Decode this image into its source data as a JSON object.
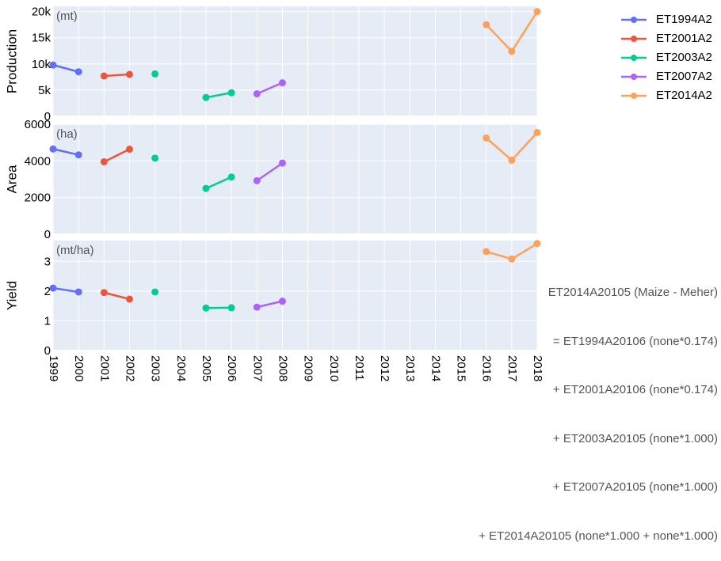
{
  "chart_data": {
    "type": "line",
    "x_range": [
      1999,
      2018
    ],
    "x_ticks": [
      "1999",
      "2000",
      "2001",
      "2002",
      "2003",
      "2004",
      "2005",
      "2006",
      "2007",
      "2008",
      "2009",
      "2010",
      "2011",
      "2012",
      "2013",
      "2014",
      "2015",
      "2016",
      "2017",
      "2018"
    ],
    "panels": [
      {
        "ylabel": "Production",
        "unit": "(mt)",
        "ylim": [
          0,
          21000
        ],
        "yticks": [
          {
            "v": 0,
            "label": "0"
          },
          {
            "v": 5000,
            "label": "5k"
          },
          {
            "v": 10000,
            "label": "10k"
          },
          {
            "v": 15000,
            "label": "15k"
          },
          {
            "v": 20000,
            "label": "20k"
          }
        ],
        "series": [
          {
            "name": "ET1994A2",
            "x": [
              1999,
              2000
            ],
            "y": [
              9800,
              8500
            ]
          },
          {
            "name": "ET2001A2",
            "x": [
              2001,
              2002
            ],
            "y": [
              7700,
              8000
            ]
          },
          {
            "name": "ET2003A2",
            "x": [
              2003
            ],
            "y": [
              8100
            ]
          },
          {
            "name": "ET2003A2",
            "x": [
              2005,
              2006
            ],
            "y": [
              3600,
              4500
            ]
          },
          {
            "name": "ET2007A2",
            "x": [
              2007,
              2008
            ],
            "y": [
              4300,
              6400
            ]
          },
          {
            "name": "ET2014A2",
            "x": [
              2016,
              2017,
              2018
            ],
            "y": [
              17500,
              12400,
              20000
            ]
          }
        ]
      },
      {
        "ylabel": "Area",
        "unit": "(ha)",
        "ylim": [
          0,
          6000
        ],
        "yticks": [
          {
            "v": 0,
            "label": "0"
          },
          {
            "v": 2000,
            "label": "2000"
          },
          {
            "v": 4000,
            "label": "4000"
          },
          {
            "v": 6000,
            "label": "6000"
          }
        ],
        "series": [
          {
            "name": "ET1994A2",
            "x": [
              1999,
              2000
            ],
            "y": [
              4650,
              4330
            ]
          },
          {
            "name": "ET2001A2",
            "x": [
              2001,
              2002
            ],
            "y": [
              3950,
              4640
            ]
          },
          {
            "name": "ET2003A2",
            "x": [
              2003
            ],
            "y": [
              4150
            ]
          },
          {
            "name": "ET2003A2",
            "x": [
              2005,
              2006
            ],
            "y": [
              2500,
              3120
            ]
          },
          {
            "name": "ET2007A2",
            "x": [
              2007,
              2008
            ],
            "y": [
              2920,
              3880
            ]
          },
          {
            "name": "ET2014A2",
            "x": [
              2016,
              2017,
              2018
            ],
            "y": [
              5250,
              4040,
              5550
            ]
          }
        ]
      },
      {
        "ylabel": "Yield",
        "unit": "(mt/ha)",
        "ylim": [
          0,
          3.7
        ],
        "yticks": [
          {
            "v": 0,
            "label": "0"
          },
          {
            "v": 1,
            "label": "1"
          },
          {
            "v": 2,
            "label": "2"
          },
          {
            "v": 3,
            "label": "3"
          }
        ],
        "series": [
          {
            "name": "ET1994A2",
            "x": [
              1999,
              2000
            ],
            "y": [
              2.1,
              1.97
            ]
          },
          {
            "name": "ET2001A2",
            "x": [
              2001,
              2002
            ],
            "y": [
              1.95,
              1.73
            ]
          },
          {
            "name": "ET2003A2",
            "x": [
              2003
            ],
            "y": [
              1.97
            ]
          },
          {
            "name": "ET2003A2",
            "x": [
              2005,
              2006
            ],
            "y": [
              1.43,
              1.44
            ]
          },
          {
            "name": "ET2007A2",
            "x": [
              2007,
              2008
            ],
            "y": [
              1.46,
              1.66
            ]
          },
          {
            "name": "ET2014A2",
            "x": [
              2016,
              2017,
              2018
            ],
            "y": [
              3.33,
              3.08,
              3.6
            ]
          }
        ]
      }
    ],
    "legend": {
      "placement": "top-right",
      "entries": [
        {
          "name": "ET1994A2",
          "color": "#636efa"
        },
        {
          "name": "ET2001A2",
          "color": "#ef553b"
        },
        {
          "name": "ET2003A2",
          "color": "#00cc96"
        },
        {
          "name": "ET2007A2",
          "color": "#ab63fa"
        },
        {
          "name": "ET2014A2",
          "color": "#ffa15a"
        }
      ]
    },
    "annotation": [
      "ET2014A20105 (Maize - Meher)",
      "= ET1994A20106 (none*0.174)",
      "+ ET2001A20106 (none*0.174)",
      "+ ET2003A20105 (none*1.000)",
      "+ ET2007A20105 (none*1.000)",
      "+ ET2014A20105 (none*1.000 + none*1.000)"
    ],
    "plot_background": "#e5ecf6",
    "grid": true
  }
}
